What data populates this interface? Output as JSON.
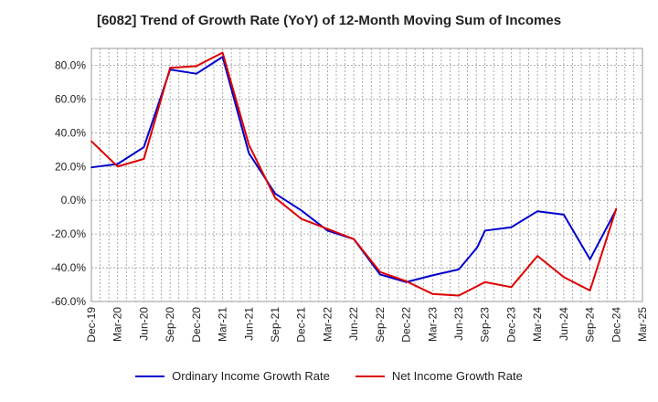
{
  "chart_data": {
    "type": "line",
    "title": "[6082]  Trend of Growth Rate (YoY) of 12-Month Moving Sum of Incomes",
    "x_categories": [
      "Dec-19",
      "Mar-20",
      "Jun-20",
      "Sep-20",
      "Dec-20",
      "Mar-21",
      "Jun-21",
      "Sep-21",
      "Dec-21",
      "Mar-22",
      "Jun-22",
      "Sep-22",
      "Dec-22",
      "Mar-23",
      "Jun-23",
      "Sep-23",
      "Dec-23",
      "Mar-24",
      "Jun-24",
      "Sep-24",
      "Dec-24",
      "Mar-25"
    ],
    "y_ticks": [
      "80.0%",
      "60.0%",
      "40.0%",
      "20.0%",
      "0.0%",
      "-20.0%",
      "-40.0%",
      "-60.0%"
    ],
    "ylim": [
      -60,
      90
    ],
    "grid": true,
    "legend_position": "bottom",
    "series": [
      {
        "name": "Ordinary Income Growth Rate",
        "color": "#0000cc",
        "points": [
          [
            0,
            19.5
          ],
          [
            1,
            21.5
          ],
          [
            2,
            31.5
          ],
          [
            3,
            77.5
          ],
          [
            4,
            75.0
          ],
          [
            5,
            85.0
          ],
          [
            6,
            28.0
          ],
          [
            7,
            4.0
          ],
          [
            8,
            -6.0
          ],
          [
            9,
            -18.0
          ],
          [
            10,
            -23.0
          ],
          [
            11,
            -44.0
          ],
          [
            12,
            -48.5
          ],
          [
            13,
            -44.5
          ],
          [
            14,
            -41.0
          ],
          [
            14.7,
            -28.0
          ],
          [
            15,
            -18.0
          ],
          [
            16,
            -16.0
          ],
          [
            17,
            -6.5
          ],
          [
            18,
            -8.5
          ],
          [
            19,
            -35.0
          ],
          [
            20,
            -5.5
          ]
        ]
      },
      {
        "name": "Net Income Growth Rate",
        "color": "#dd0000",
        "points": [
          [
            0,
            35.0
          ],
          [
            1,
            20.0
          ],
          [
            2,
            24.5
          ],
          [
            3,
            78.5
          ],
          [
            4,
            79.5
          ],
          [
            5,
            87.5
          ],
          [
            6,
            33.0
          ],
          [
            7,
            1.5
          ],
          [
            8,
            -11.0
          ],
          [
            9,
            -17.0
          ],
          [
            10,
            -23.0
          ],
          [
            11,
            -42.5
          ],
          [
            12,
            -48.0
          ],
          [
            13,
            -55.5
          ],
          [
            14,
            -56.5
          ],
          [
            15,
            -48.5
          ],
          [
            16,
            -51.5
          ],
          [
            17,
            -33.0
          ],
          [
            18,
            -45.5
          ],
          [
            19,
            -53.5
          ],
          [
            20,
            -5.0
          ]
        ]
      }
    ]
  }
}
